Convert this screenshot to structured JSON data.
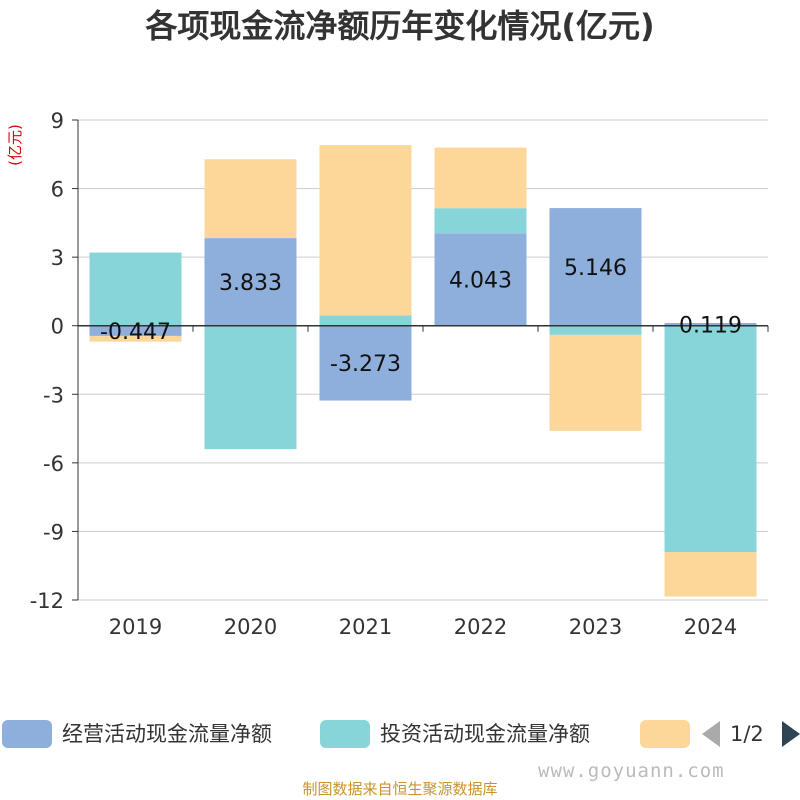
{
  "title": "各项现金流净额历年变化情况(亿元)",
  "colors": {
    "operating": "#8eaedc",
    "investing": "#87d5d8",
    "financing": "#fdd699",
    "unit": "#dd0000"
  },
  "legend": {
    "items": [
      {
        "label": "经营活动现金流量净额"
      },
      {
        "label": "投资活动现金流量净额"
      },
      {
        "label": ""
      }
    ],
    "pager": "1/2"
  },
  "watermark": "www.goyuann.com",
  "source": "制图数据来自恒生聚源数据库",
  "chart_data": {
    "type": "bar",
    "stacked": true,
    "title": "各项现金流净额历年变化情况(亿元)",
    "ylabel": "(亿元)",
    "ylim": [
      -12,
      9
    ],
    "yticks": [
      9,
      6,
      3,
      0,
      -3,
      -6,
      -9,
      -12
    ],
    "categories": [
      "2019",
      "2020",
      "2021",
      "2022",
      "2023",
      "2024"
    ],
    "grid": true,
    "legend_position": "bottom",
    "series": [
      {
        "name": "经营活动现金流量净额",
        "values": [
          -0.447,
          3.833,
          -3.273,
          4.043,
          5.146,
          0.119
        ],
        "labeled": true
      },
      {
        "name": "投资活动现金流量净额",
        "values": [
          3.2,
          -5.4,
          0.45,
          1.1,
          -0.4,
          -9.9
        ],
        "labeled": false
      },
      {
        "name": "",
        "values": [
          -0.25,
          3.45,
          7.45,
          2.65,
          -4.2,
          -1.95
        ],
        "labeled": false
      }
    ]
  }
}
